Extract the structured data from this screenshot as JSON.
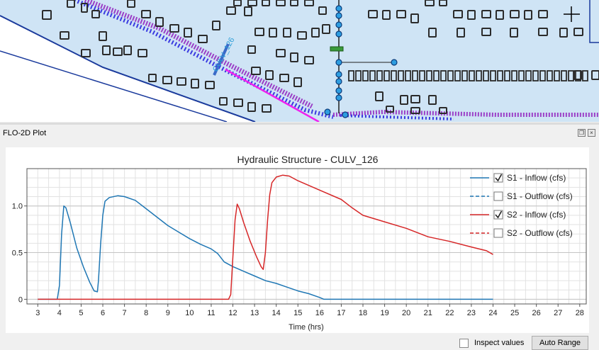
{
  "map": {
    "label": "CULV_126",
    "colors": {
      "water": "#cfe4f5",
      "land": "#ffffff",
      "building": "#2b2b2b",
      "channel": "#3a3ae0",
      "levee": "#9b3fc7",
      "boundary": "#1a3a9c",
      "arrow": "#ee22ee",
      "node": "#2d9de0"
    },
    "icons": [
      "crosshair-icon",
      "zoom-icon"
    ]
  },
  "panel": {
    "title": "FLO-2D Plot",
    "restore_icon": "restore-icon",
    "close_icon": "close-icon"
  },
  "controls": {
    "inspect_label": "Inspect values",
    "inspect_checked": false,
    "auto_range_label": "Auto Range"
  },
  "chart_data": {
    "type": "line",
    "title": "Hydraulic Structure - CULV_126",
    "xlabel": "Time (hrs)",
    "ylabel": "",
    "xlim": [
      2.5,
      28.3
    ],
    "ylim": [
      -0.05,
      1.4
    ],
    "x_ticks": [
      3,
      4,
      5,
      6,
      7,
      8,
      9,
      10,
      11,
      12,
      13,
      14,
      15,
      16,
      17,
      18,
      19,
      20,
      21,
      22,
      23,
      24,
      25,
      26,
      27,
      28
    ],
    "y_ticks": [
      0,
      0.5,
      1.0
    ],
    "y_tick_labels": [
      "0",
      "0.5",
      "1.0"
    ],
    "grid": true,
    "legend_position": "top-right",
    "series": [
      {
        "name": "S1 - Inflow (cfs)",
        "checked": true,
        "color": "#1f77b4",
        "dash": false,
        "points": [
          [
            3,
            0
          ],
          [
            3.9,
            0
          ],
          [
            4.0,
            0.15
          ],
          [
            4.1,
            0.7
          ],
          [
            4.2,
            1.0
          ],
          [
            4.3,
            0.98
          ],
          [
            4.5,
            0.82
          ],
          [
            4.8,
            0.55
          ],
          [
            5.1,
            0.35
          ],
          [
            5.4,
            0.18
          ],
          [
            5.6,
            0.09
          ],
          [
            5.75,
            0.08
          ],
          [
            5.8,
            0.2
          ],
          [
            5.9,
            0.6
          ],
          [
            6.0,
            0.9
          ],
          [
            6.1,
            1.05
          ],
          [
            6.3,
            1.09
          ],
          [
            6.7,
            1.11
          ],
          [
            7.0,
            1.1
          ],
          [
            7.5,
            1.06
          ],
          [
            8.0,
            0.97
          ],
          [
            8.5,
            0.88
          ],
          [
            9.0,
            0.79
          ],
          [
            9.5,
            0.72
          ],
          [
            10.0,
            0.65
          ],
          [
            10.5,
            0.59
          ],
          [
            11.0,
            0.54
          ],
          [
            11.3,
            0.49
          ],
          [
            11.6,
            0.4
          ],
          [
            12.0,
            0.35
          ],
          [
            12.5,
            0.3
          ],
          [
            13.0,
            0.25
          ],
          [
            13.5,
            0.2
          ],
          [
            14.0,
            0.17
          ],
          [
            14.5,
            0.13
          ],
          [
            15.0,
            0.09
          ],
          [
            15.5,
            0.06
          ],
          [
            16.0,
            0.02
          ],
          [
            16.2,
            0
          ],
          [
            24,
            0
          ]
        ]
      },
      {
        "name": "S1 - Outflow (cfs)",
        "checked": false,
        "color": "#1f77b4",
        "dash": true,
        "points": []
      },
      {
        "name": "S2 - Inflow (cfs)",
        "checked": true,
        "color": "#d62728",
        "dash": false,
        "points": [
          [
            3,
            0
          ],
          [
            11.8,
            0
          ],
          [
            11.9,
            0.05
          ],
          [
            12.0,
            0.45
          ],
          [
            12.1,
            0.85
          ],
          [
            12.2,
            1.02
          ],
          [
            12.3,
            0.97
          ],
          [
            12.5,
            0.82
          ],
          [
            12.8,
            0.62
          ],
          [
            13.1,
            0.45
          ],
          [
            13.3,
            0.35
          ],
          [
            13.4,
            0.32
          ],
          [
            13.5,
            0.5
          ],
          [
            13.6,
            0.85
          ],
          [
            13.7,
            1.12
          ],
          [
            13.8,
            1.25
          ],
          [
            14.0,
            1.31
          ],
          [
            14.3,
            1.33
          ],
          [
            14.6,
            1.32
          ],
          [
            15.0,
            1.27
          ],
          [
            16.0,
            1.17
          ],
          [
            17.0,
            1.07
          ],
          [
            17.5,
            0.98
          ],
          [
            18.0,
            0.9
          ],
          [
            19.0,
            0.83
          ],
          [
            20.0,
            0.76
          ],
          [
            21.0,
            0.67
          ],
          [
            22.0,
            0.62
          ],
          [
            23.0,
            0.56
          ],
          [
            23.7,
            0.52
          ],
          [
            24.0,
            0.48
          ]
        ]
      },
      {
        "name": "S2 - Outflow (cfs)",
        "checked": false,
        "color": "#d62728",
        "dash": true,
        "points": []
      }
    ]
  }
}
